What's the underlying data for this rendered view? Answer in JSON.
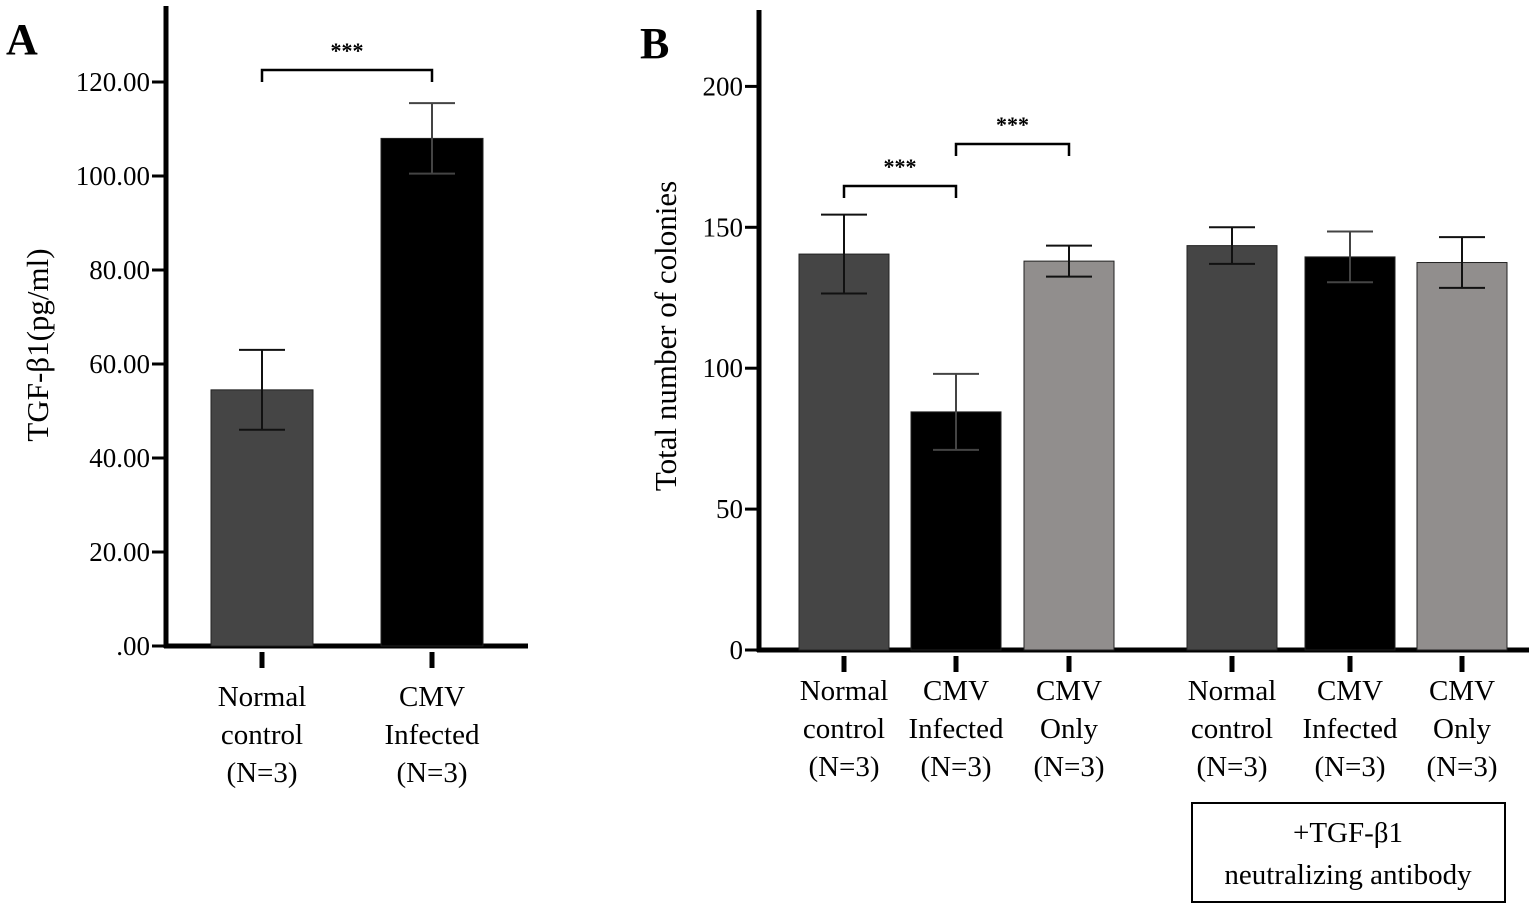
{
  "chart_data": [
    {
      "panel": "A",
      "type": "bar",
      "ylabel": "TGF-β1(pg/ml)",
      "xlabel": "",
      "ylim": [
        0,
        130
      ],
      "yticks": [
        ".00",
        "20.00",
        "40.00",
        "60.00",
        "80.00",
        "100.00",
        "120.00"
      ],
      "ytick_values": [
        0,
        20,
        40,
        60,
        80,
        100,
        120
      ],
      "categories": [
        [
          "Normal",
          "control",
          "(N=3)"
        ],
        [
          "CMV",
          "Infected",
          "(N=3)"
        ]
      ],
      "values": [
        54.5,
        108
      ],
      "errors": [
        8.5,
        7.5
      ],
      "colors": [
        "#454545",
        "#000000"
      ],
      "significance": [
        {
          "from": 0,
          "to": 1,
          "label": "***"
        }
      ]
    },
    {
      "panel": "B",
      "type": "bar",
      "ylabel": "Total number of colonies",
      "xlabel": "",
      "ylim": [
        0,
        227
      ],
      "yticks": [
        "0",
        "50",
        "100",
        "150",
        "200"
      ],
      "ytick_values": [
        0,
        50,
        100,
        150,
        200
      ],
      "categories": [
        [
          "Normal",
          "control",
          "(N=3)"
        ],
        [
          "CMV",
          "Infected",
          "(N=3)"
        ],
        [
          "CMV",
          "Only",
          "(N=3)"
        ],
        [
          "Normal",
          "control",
          "(N=3)"
        ],
        [
          "CMV",
          "Infected",
          "(N=3)"
        ],
        [
          "CMV",
          "Only",
          "(N=3)"
        ]
      ],
      "values": [
        140.5,
        84.5,
        138,
        143.5,
        139.5,
        137.5
      ],
      "errors": [
        14,
        13.5,
        5.5,
        6.5,
        9,
        9
      ],
      "colors": [
        "#454545",
        "#000000",
        "#918e8d",
        "#454545",
        "#000000",
        "#918e8d"
      ],
      "significance": [
        {
          "from": 0,
          "to": 1,
          "label": "***"
        },
        {
          "from": 1,
          "to": 2,
          "label": "***"
        }
      ],
      "group_annotation": {
        "lines": [
          "+TGF-β1",
          "neutralizing antibody"
        ],
        "applies_to": [
          3,
          4,
          5
        ]
      }
    }
  ]
}
